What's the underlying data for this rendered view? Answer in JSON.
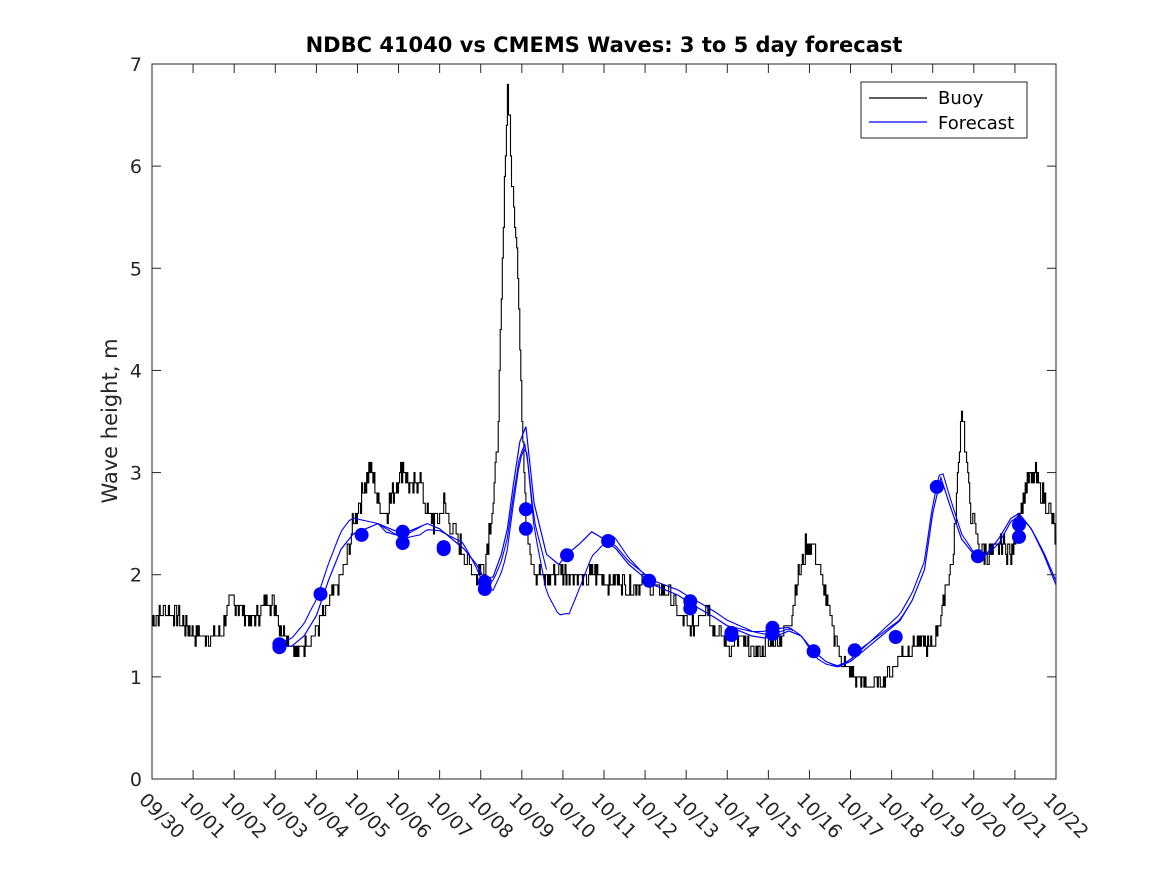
{
  "chart_data": {
    "type": "line",
    "title": "NDBC 41040 vs CMEMS Waves: 3 to 5 day forecast",
    "xlabel": "",
    "ylabel": "Wave height, m",
    "x_tick_labels": [
      "09/30",
      "10/01",
      "10/02",
      "10/03",
      "10/04",
      "10/05",
      "10/06",
      "10/07",
      "10/08",
      "10/09",
      "10/10",
      "10/11",
      "10/12",
      "10/13",
      "10/14",
      "10/15",
      "10/16",
      "10/17",
      "10/18",
      "10/19",
      "10/20",
      "10/21",
      "10/22"
    ],
    "xlim": [
      0,
      22
    ],
    "ylim": [
      0,
      7
    ],
    "y_ticks": [
      0,
      1,
      2,
      3,
      4,
      5,
      6,
      7
    ],
    "legend": {
      "placement": "top-right",
      "entries": [
        "Buoy",
        "Forecast"
      ]
    },
    "colors": {
      "buoy": "#000000",
      "forecast": "#0000ff",
      "markers": "#0000ff"
    },
    "series": [
      {
        "name": "Buoy",
        "x": [
          0,
          0.3,
          0.6,
          0.9,
          1.1,
          1.4,
          1.7,
          1.9,
          2.2,
          2.4,
          2.6,
          2.8,
          3.0,
          3.1,
          3.3,
          3.5,
          3.7,
          3.9,
          4.1,
          4.3,
          4.5,
          4.7,
          4.9,
          5.1,
          5.3,
          5.5,
          5.7,
          5.9,
          6.1,
          6.3,
          6.5,
          6.7,
          6.9,
          7.1,
          7.3,
          7.5,
          7.7,
          7.9,
          8.1,
          8.3,
          8.4,
          8.5,
          8.6,
          8.65,
          8.7,
          8.75,
          8.8,
          8.9,
          9.0,
          9.1,
          9.2,
          9.3,
          9.5,
          9.7,
          9.9,
          10.1,
          10.3,
          10.5,
          10.7,
          10.9,
          11.1,
          11.3,
          11.5,
          11.7,
          11.9,
          12.1,
          12.3,
          12.5,
          12.7,
          12.9,
          13.1,
          13.3,
          13.5,
          13.7,
          13.9,
          14.1,
          14.3,
          14.5,
          14.7,
          14.9,
          15.1,
          15.3,
          15.5,
          15.7,
          15.9,
          16.1,
          16.3,
          16.5,
          16.7,
          16.9,
          17.1,
          17.3,
          17.5,
          17.7,
          17.9,
          18.1,
          18.3,
          18.5,
          18.7,
          18.9,
          19.0,
          19.1,
          19.2,
          19.3,
          19.5,
          19.7,
          19.9,
          20.1,
          20.3,
          20.5,
          20.7,
          20.9,
          21.1,
          21.3,
          21.5,
          21.7,
          21.9,
          22.0
        ],
        "values": [
          1.55,
          1.65,
          1.6,
          1.45,
          1.4,
          1.4,
          1.45,
          1.75,
          1.65,
          1.55,
          1.6,
          1.75,
          1.7,
          1.5,
          1.4,
          1.25,
          1.3,
          1.4,
          1.55,
          1.7,
          1.9,
          2.1,
          2.5,
          2.8,
          3.05,
          2.7,
          2.6,
          2.85,
          3.05,
          2.8,
          2.95,
          2.6,
          2.5,
          2.7,
          2.45,
          2.3,
          2.1,
          2.0,
          2.15,
          2.7,
          3.3,
          4.6,
          6.2,
          6.75,
          6.5,
          5.8,
          5.6,
          5.0,
          3.6,
          2.5,
          2.25,
          2.05,
          1.95,
          2.0,
          2.05,
          2.0,
          2.0,
          1.95,
          2.0,
          2.0,
          1.9,
          1.95,
          1.9,
          1.85,
          1.95,
          1.9,
          1.85,
          1.85,
          1.7,
          1.55,
          1.45,
          1.6,
          1.7,
          1.45,
          1.35,
          1.3,
          1.35,
          1.3,
          1.25,
          1.3,
          1.35,
          1.4,
          1.5,
          1.95,
          2.25,
          2.3,
          1.95,
          1.6,
          1.25,
          1.1,
          1.0,
          0.95,
          0.9,
          0.95,
          1.0,
          1.15,
          1.25,
          1.3,
          1.35,
          1.3,
          1.3,
          1.45,
          1.6,
          1.9,
          2.2,
          3.65,
          2.7,
          2.3,
          2.2,
          2.2,
          2.3,
          2.2,
          2.6,
          2.9,
          2.95,
          2.75,
          2.55,
          2.3
        ]
      },
      {
        "name": "Forecast",
        "x": [
          3.1,
          3.4,
          3.7,
          4.0,
          4.3,
          4.6,
          4.9,
          5.2,
          5.5,
          5.8,
          6.1,
          6.4,
          6.7,
          7.0,
          7.3,
          7.6,
          7.9,
          8.1,
          8.3,
          8.5,
          8.65,
          8.8,
          8.95,
          9.1,
          9.3,
          9.6,
          9.9,
          10.1,
          10.4,
          10.7,
          11.0,
          11.3,
          11.6,
          11.9,
          12.2,
          12.5,
          12.8,
          13.1,
          13.4,
          13.7,
          14.0,
          14.3,
          14.6,
          14.9,
          15.2,
          15.5,
          15.8,
          16.1,
          16.4,
          16.7,
          17.0,
          17.3,
          17.6,
          17.9,
          18.2,
          18.5,
          18.8,
          19.0,
          19.2,
          19.4,
          19.7,
          20.0,
          20.3,
          20.6,
          20.9,
          21.1,
          21.4,
          21.7,
          22.0
        ],
        "values": [
          1.3,
          1.3,
          1.4,
          1.6,
          1.95,
          2.25,
          2.4,
          2.45,
          2.5,
          2.45,
          2.4,
          2.45,
          2.5,
          2.45,
          2.35,
          2.25,
          2.1,
          1.95,
          1.98,
          2.2,
          2.45,
          2.9,
          3.3,
          3.45,
          2.7,
          2.2,
          2.1,
          2.2,
          2.3,
          2.42,
          2.35,
          2.25,
          2.1,
          2.0,
          1.9,
          1.85,
          1.8,
          1.72,
          1.65,
          1.58,
          1.5,
          1.45,
          1.4,
          1.38,
          1.4,
          1.45,
          1.4,
          1.25,
          1.15,
          1.1,
          1.15,
          1.25,
          1.35,
          1.45,
          1.55,
          1.75,
          2.05,
          2.6,
          2.95,
          2.7,
          2.35,
          2.2,
          2.2,
          2.35,
          2.55,
          2.6,
          2.45,
          2.2,
          1.9
        ]
      }
    ],
    "forecast_variants": [
      {
        "start": 3.0,
        "end": 6.6,
        "offset": [
          0.02,
          0.15,
          0.18,
          -0.05,
          0.0
        ]
      },
      {
        "start": 5.5,
        "end": 9.6,
        "offset": [
          0.0,
          -0.08,
          0.05,
          -0.2,
          -0.15
        ]
      },
      {
        "start": 8.0,
        "end": 12.3,
        "offset": [
          0.0,
          -0.15,
          -0.6,
          0.1,
          0.0
        ]
      },
      {
        "start": 11.0,
        "end": 15.6,
        "offset": [
          0.02,
          0.04,
          0.06,
          0.05,
          0.02
        ]
      },
      {
        "start": 14.0,
        "end": 18.4,
        "offset": [
          0.0,
          0.08,
          -0.04,
          0.04,
          0.0
        ]
      },
      {
        "start": 16.5,
        "end": 22.0,
        "offset": [
          0.0,
          0.05,
          0.1,
          -0.05,
          0.04
        ]
      }
    ],
    "markers": {
      "x": [
        3.1,
        3.1,
        4.1,
        5.1,
        6.1,
        6.1,
        7.1,
        7.1,
        8.1,
        8.1,
        9.1,
        9.1,
        10.1,
        11.1,
        12.1,
        13.1,
        13.1,
        14.1,
        14.1,
        15.1,
        15.1,
        15.1,
        16.1,
        17.1,
        18.1,
        19.1,
        20.1,
        21.1,
        21.1
      ],
      "values": [
        1.29,
        1.32,
        1.81,
        2.39,
        2.31,
        2.42,
        2.25,
        2.27,
        1.86,
        1.93,
        2.45,
        2.64,
        2.19,
        2.33,
        1.94,
        1.67,
        1.74,
        1.41,
        1.43,
        1.42,
        1.45,
        1.48,
        1.25,
        1.26,
        1.39,
        2.86,
        2.18,
        2.37,
        2.49
      ]
    }
  }
}
